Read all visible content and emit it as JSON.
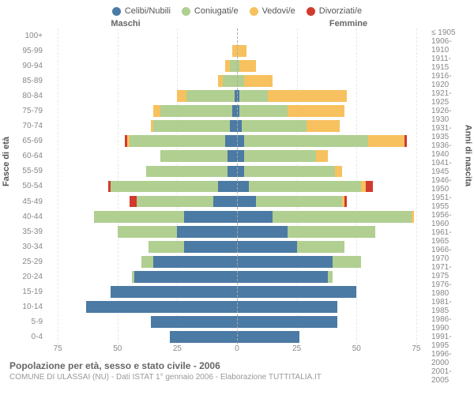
{
  "legend": [
    {
      "label": "Celibi/Nubili",
      "color": "#4b7aa4"
    },
    {
      "label": "Coniugati/e",
      "color": "#b0cf91"
    },
    {
      "label": "Vedovi/e",
      "color": "#f7c15f"
    },
    {
      "label": "Divorziati/e",
      "color": "#d23a2e"
    }
  ],
  "gender_labels": {
    "male": "Maschi",
    "female": "Femmine"
  },
  "axis_titles": {
    "left": "Fasce di età",
    "right": "Anni di nascita"
  },
  "x_ticks": [
    75,
    50,
    25,
    0,
    25,
    50,
    75
  ],
  "x_max": 80,
  "footer": {
    "title": "Popolazione per età, sesso e stato civile - 2006",
    "subtitle": "COMUNE DI ULASSAI (NU) - Dati ISTAT 1° gennaio 2006 - Elaborazione TUTTITALIA.IT"
  },
  "colors": {
    "single": "#4b7aa4",
    "married": "#b0cf91",
    "widowed": "#f7c15f",
    "divorced": "#d23a2e",
    "bg": "#ffffff",
    "grid": "#e8e8e8",
    "center": "#aaaaaa",
    "text": "#888888"
  },
  "rows": [
    {
      "age": "100+",
      "birth": "≤ 1905",
      "m": [
        0,
        0,
        0,
        0
      ],
      "f": [
        0,
        0,
        0,
        0
      ]
    },
    {
      "age": "95-99",
      "birth": "1906-1910",
      "m": [
        0,
        0,
        2,
        0
      ],
      "f": [
        0,
        0,
        4,
        0
      ]
    },
    {
      "age": "90-94",
      "birth": "1911-1915",
      "m": [
        0,
        3,
        2,
        0
      ],
      "f": [
        0,
        1,
        7,
        0
      ]
    },
    {
      "age": "85-89",
      "birth": "1916-1920",
      "m": [
        0,
        6,
        2,
        0
      ],
      "f": [
        0,
        3,
        12,
        0
      ]
    },
    {
      "age": "80-84",
      "birth": "1921-1925",
      "m": [
        1,
        20,
        4,
        0
      ],
      "f": [
        1,
        12,
        33,
        0
      ]
    },
    {
      "age": "75-79",
      "birth": "1926-1930",
      "m": [
        2,
        30,
        3,
        0
      ],
      "f": [
        1,
        20,
        24,
        0
      ]
    },
    {
      "age": "70-74",
      "birth": "1931-1935",
      "m": [
        3,
        32,
        1,
        0
      ],
      "f": [
        2,
        27,
        14,
        0
      ]
    },
    {
      "age": "65-69",
      "birth": "1936-1940",
      "m": [
        5,
        40,
        1,
        1
      ],
      "f": [
        3,
        52,
        15,
        1
      ]
    },
    {
      "age": "60-64",
      "birth": "1941-1945",
      "m": [
        4,
        28,
        0,
        0
      ],
      "f": [
        3,
        30,
        5,
        0
      ]
    },
    {
      "age": "55-59",
      "birth": "1946-1950",
      "m": [
        4,
        34,
        0,
        0
      ],
      "f": [
        3,
        38,
        3,
        0
      ]
    },
    {
      "age": "50-54",
      "birth": "1951-1955",
      "m": [
        8,
        45,
        0,
        1
      ],
      "f": [
        5,
        47,
        2,
        3
      ]
    },
    {
      "age": "45-49",
      "birth": "1956-1960",
      "m": [
        10,
        32,
        0,
        3
      ],
      "f": [
        8,
        36,
        1,
        1
      ]
    },
    {
      "age": "40-44",
      "birth": "1961-1965",
      "m": [
        22,
        38,
        0,
        0
      ],
      "f": [
        15,
        58,
        1,
        0
      ]
    },
    {
      "age": "35-39",
      "birth": "1966-1970",
      "m": [
        25,
        25,
        0,
        0
      ],
      "f": [
        21,
        37,
        0,
        0
      ]
    },
    {
      "age": "30-34",
      "birth": "1971-1975",
      "m": [
        22,
        15,
        0,
        0
      ],
      "f": [
        25,
        20,
        0,
        0
      ]
    },
    {
      "age": "25-29",
      "birth": "1976-1980",
      "m": [
        35,
        5,
        0,
        0
      ],
      "f": [
        40,
        12,
        0,
        0
      ]
    },
    {
      "age": "20-24",
      "birth": "1981-1985",
      "m": [
        43,
        1,
        0,
        0
      ],
      "f": [
        38,
        2,
        0,
        0
      ]
    },
    {
      "age": "15-19",
      "birth": "1986-1990",
      "m": [
        53,
        0,
        0,
        0
      ],
      "f": [
        50,
        0,
        0,
        0
      ]
    },
    {
      "age": "10-14",
      "birth": "1991-1995",
      "m": [
        63,
        0,
        0,
        0
      ],
      "f": [
        42,
        0,
        0,
        0
      ]
    },
    {
      "age": "5-9",
      "birth": "1996-2000",
      "m": [
        36,
        0,
        0,
        0
      ],
      "f": [
        42,
        0,
        0,
        0
      ]
    },
    {
      "age": "0-4",
      "birth": "2001-2005",
      "m": [
        28,
        0,
        0,
        0
      ],
      "f": [
        26,
        0,
        0,
        0
      ]
    }
  ]
}
